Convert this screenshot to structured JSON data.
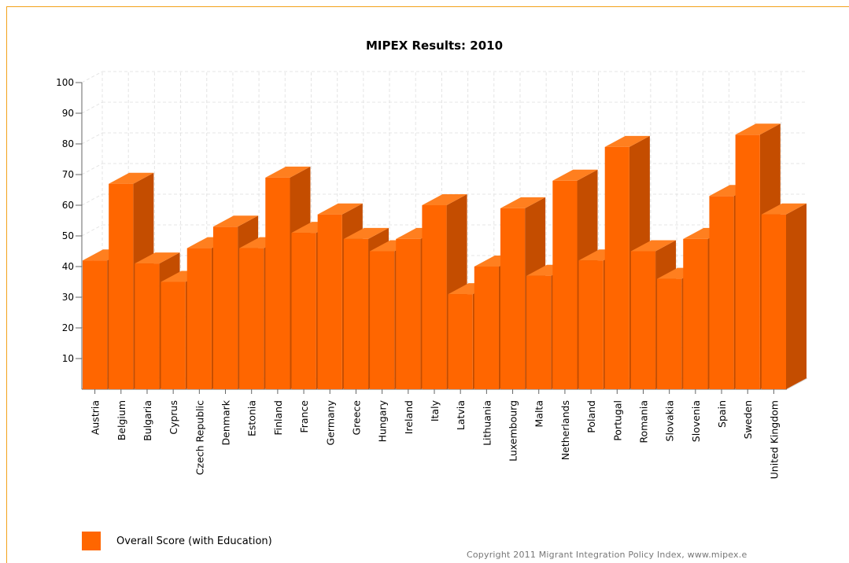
{
  "chart_data": {
    "type": "bar",
    "title": "MIPEX Results: 2010",
    "xlabel": "",
    "ylabel": "",
    "ylim": [
      0,
      100
    ],
    "yticks": [
      10,
      20,
      30,
      40,
      50,
      60,
      70,
      80,
      90,
      100
    ],
    "grid": true,
    "legend_position": "bottom-left",
    "categories": [
      "Austria",
      "Belgium",
      "Bulgaria",
      "Cyprus",
      "Czech Republic",
      "Denmark",
      "Estonia",
      "Finland",
      "France",
      "Germany",
      "Greece",
      "Hungary",
      "Ireland",
      "Italy",
      "Latvia",
      "Lithuania",
      "Luxembourg",
      "Malta",
      "Netherlands",
      "Poland",
      "Portugal",
      "Romania",
      "Slovakia",
      "Slovenia",
      "Spain",
      "Sweden",
      "United Kingdom"
    ],
    "series": [
      {
        "name": "Overall Score (with Education)",
        "color": "#ff6600",
        "values": [
          42,
          67,
          41,
          35,
          46,
          53,
          46,
          69,
          51,
          57,
          49,
          45,
          49,
          60,
          31,
          40,
          59,
          37,
          68,
          42,
          79,
          45,
          36,
          49,
          63,
          83,
          57
        ]
      }
    ]
  },
  "colors": {
    "bar_front": "#ff6600",
    "bar_top": "#ff7f1f",
    "bar_side": "#c44d00",
    "frame_border": "#f2a21b",
    "grid": "#e4e4e4"
  },
  "legend": {
    "label": "Overall Score (with Education)"
  },
  "footer": {
    "copyright": "Copyright 2011 Migrant Integration Policy Index, www.mipex.e"
  }
}
